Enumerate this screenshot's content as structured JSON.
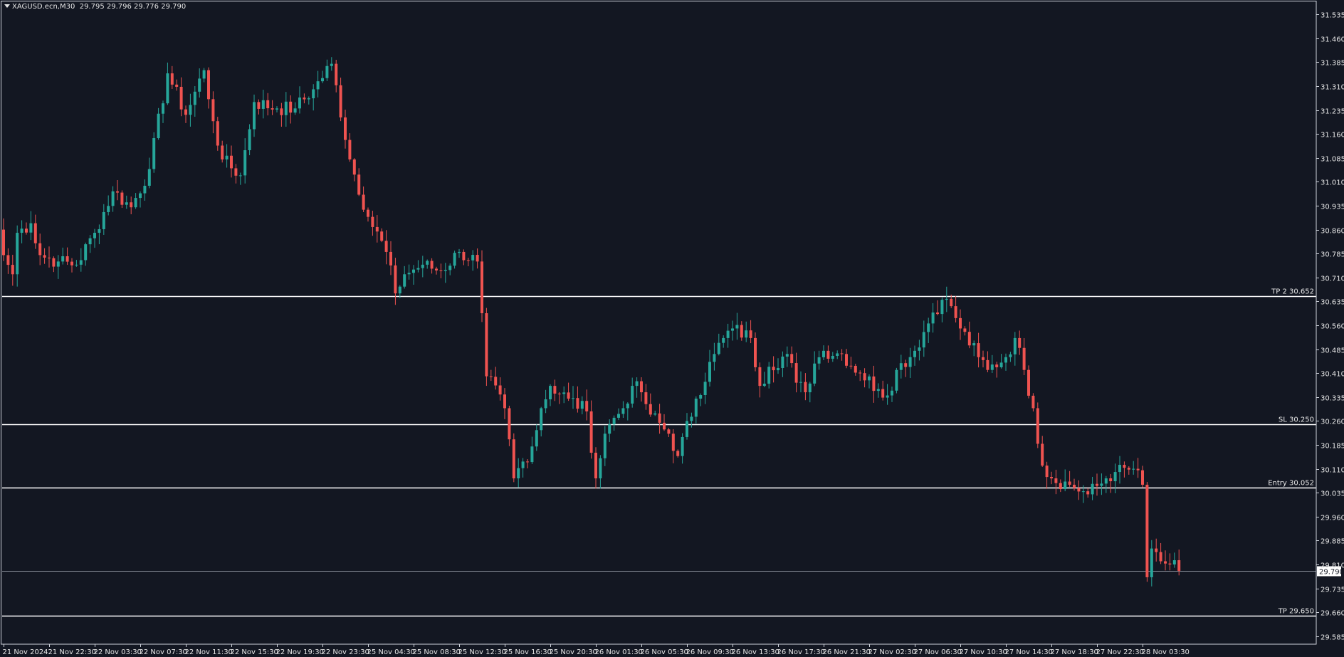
{
  "header": {
    "symbol_timeframe": "XAGUSD.ecn,M30",
    "ohlc": "29.795 29.796 29.776 29.790"
  },
  "colors": {
    "background": "#131722",
    "bull": "#26a69a",
    "bear": "#ef5350",
    "axis": "#cfd3dc",
    "text": "#e6e6e6",
    "level_line": "#ffffff",
    "last_price_line": "#8a8f9a"
  },
  "chart_data": {
    "type": "candlestick",
    "title": "",
    "xlabel": "",
    "ylabel": "",
    "ylim": [
      29.56,
      31.58
    ],
    "y_ticks": [
      29.585,
      29.66,
      29.735,
      29.81,
      29.885,
      29.96,
      30.035,
      30.11,
      30.185,
      30.26,
      30.335,
      30.41,
      30.485,
      30.56,
      30.635,
      30.71,
      30.785,
      30.86,
      30.935,
      31.01,
      31.085,
      31.16,
      31.235,
      31.31,
      31.385,
      31.46,
      31.535
    ],
    "y_tick_labels": [
      "29.585",
      "29.660",
      "29.735",
      "29.810",
      "29.885",
      "29.960",
      "30.035",
      "30.110",
      "30.185",
      "30.260",
      "30.335",
      "30.410",
      "30.485",
      "30.560",
      "30.635",
      "30.710",
      "30.785",
      "30.860",
      "30.935",
      "31.010",
      "31.085",
      "31.160",
      "31.235",
      "31.310",
      "31.385",
      "31.460",
      "31.535"
    ],
    "x_tick_labels": [
      "21 Nov 2024",
      "21 Nov 22:30",
      "22 Nov 03:30",
      "22 Nov 07:30",
      "22 Nov 11:30",
      "22 Nov 15:30",
      "22 Nov 19:30",
      "22 Nov 23:30",
      "25 Nov 04:30",
      "25 Nov 08:30",
      "25 Nov 12:30",
      "25 Nov 16:30",
      "25 Nov 20:30",
      "26 Nov 01:30",
      "26 Nov 05:30",
      "26 Nov 09:30",
      "26 Nov 13:30",
      "26 Nov 17:30",
      "26 Nov 21:30",
      "27 Nov 02:30",
      "27 Nov 06:30",
      "27 Nov 10:30",
      "27 Nov 14:30",
      "27 Nov 18:30",
      "27 Nov 22:30",
      "28 Nov 03:30"
    ],
    "x_tick_bar_index": [
      0,
      10,
      20,
      30,
      40,
      50,
      60,
      70,
      80,
      90,
      100,
      110,
      120,
      130,
      140,
      150,
      160,
      170,
      180,
      190,
      200,
      210,
      220,
      230,
      240,
      250
    ],
    "levels": [
      {
        "label": "TP 2 30.652",
        "price": 30.652
      },
      {
        "label": "SL 30.250",
        "price": 30.25
      },
      {
        "label": "Entry 30.052",
        "price": 30.052
      },
      {
        "label": "TP 29.650",
        "price": 29.65
      }
    ],
    "last_price": 29.79,
    "last_price_label": "29.790",
    "anchors": [
      [
        0,
        30.78
      ],
      [
        2,
        30.72
      ],
      [
        3,
        30.85
      ],
      [
        6,
        30.88
      ],
      [
        8,
        30.78
      ],
      [
        12,
        30.76
      ],
      [
        16,
        30.75
      ],
      [
        20,
        30.85
      ],
      [
        24,
        30.98
      ],
      [
        28,
        30.93
      ],
      [
        32,
        31.05
      ],
      [
        36,
        31.35
      ],
      [
        40,
        31.22
      ],
      [
        44,
        31.36
      ],
      [
        46,
        31.2
      ],
      [
        48,
        31.08
      ],
      [
        52,
        31.03
      ],
      [
        55,
        31.26
      ],
      [
        60,
        31.24
      ],
      [
        64,
        31.24
      ],
      [
        68,
        31.3
      ],
      [
        72,
        31.38
      ],
      [
        76,
        31.08
      ],
      [
        80,
        30.9
      ],
      [
        84,
        30.79
      ],
      [
        86,
        30.66
      ],
      [
        88,
        30.72
      ],
      [
        92,
        30.75
      ],
      [
        96,
        30.73
      ],
      [
        100,
        30.79
      ],
      [
        104,
        30.76
      ],
      [
        106,
        30.4
      ],
      [
        110,
        30.3
      ],
      [
        112,
        30.08
      ],
      [
        116,
        30.18
      ],
      [
        118,
        30.3
      ],
      [
        120,
        30.37
      ],
      [
        124,
        30.33
      ],
      [
        128,
        30.29
      ],
      [
        130,
        30.08
      ],
      [
        132,
        30.22
      ],
      [
        134,
        30.27
      ],
      [
        136,
        30.3
      ],
      [
        138,
        30.37
      ],
      [
        140,
        30.35
      ],
      [
        142,
        30.28
      ],
      [
        146,
        30.22
      ],
      [
        148,
        30.15
      ],
      [
        152,
        30.33
      ],
      [
        156,
        30.47
      ],
      [
        158,
        30.52
      ],
      [
        160,
        30.55
      ],
      [
        164,
        30.52
      ],
      [
        166,
        30.37
      ],
      [
        168,
        30.43
      ],
      [
        172,
        30.47
      ],
      [
        174,
        30.38
      ],
      [
        176,
        30.35
      ],
      [
        178,
        30.44
      ],
      [
        180,
        30.48
      ],
      [
        184,
        30.47
      ],
      [
        188,
        30.41
      ],
      [
        192,
        30.36
      ],
      [
        194,
        30.34
      ],
      [
        196,
        30.42
      ],
      [
        200,
        30.48
      ],
      [
        204,
        30.6
      ],
      [
        206,
        30.64
      ],
      [
        208,
        30.62
      ],
      [
        210,
        30.55
      ],
      [
        214,
        30.46
      ],
      [
        216,
        30.42
      ],
      [
        220,
        30.46
      ],
      [
        222,
        30.52
      ],
      [
        224,
        30.42
      ],
      [
        226,
        30.3
      ],
      [
        228,
        30.12
      ],
      [
        230,
        30.08
      ],
      [
        234,
        30.06
      ],
      [
        238,
        30.03
      ],
      [
        242,
        30.08
      ],
      [
        244,
        30.1
      ],
      [
        248,
        30.11
      ],
      [
        250,
        30.06
      ],
      [
        251,
        29.77
      ],
      [
        252,
        29.86
      ],
      [
        254,
        29.82
      ],
      [
        256,
        29.81
      ],
      [
        258,
        29.79
      ]
    ]
  }
}
